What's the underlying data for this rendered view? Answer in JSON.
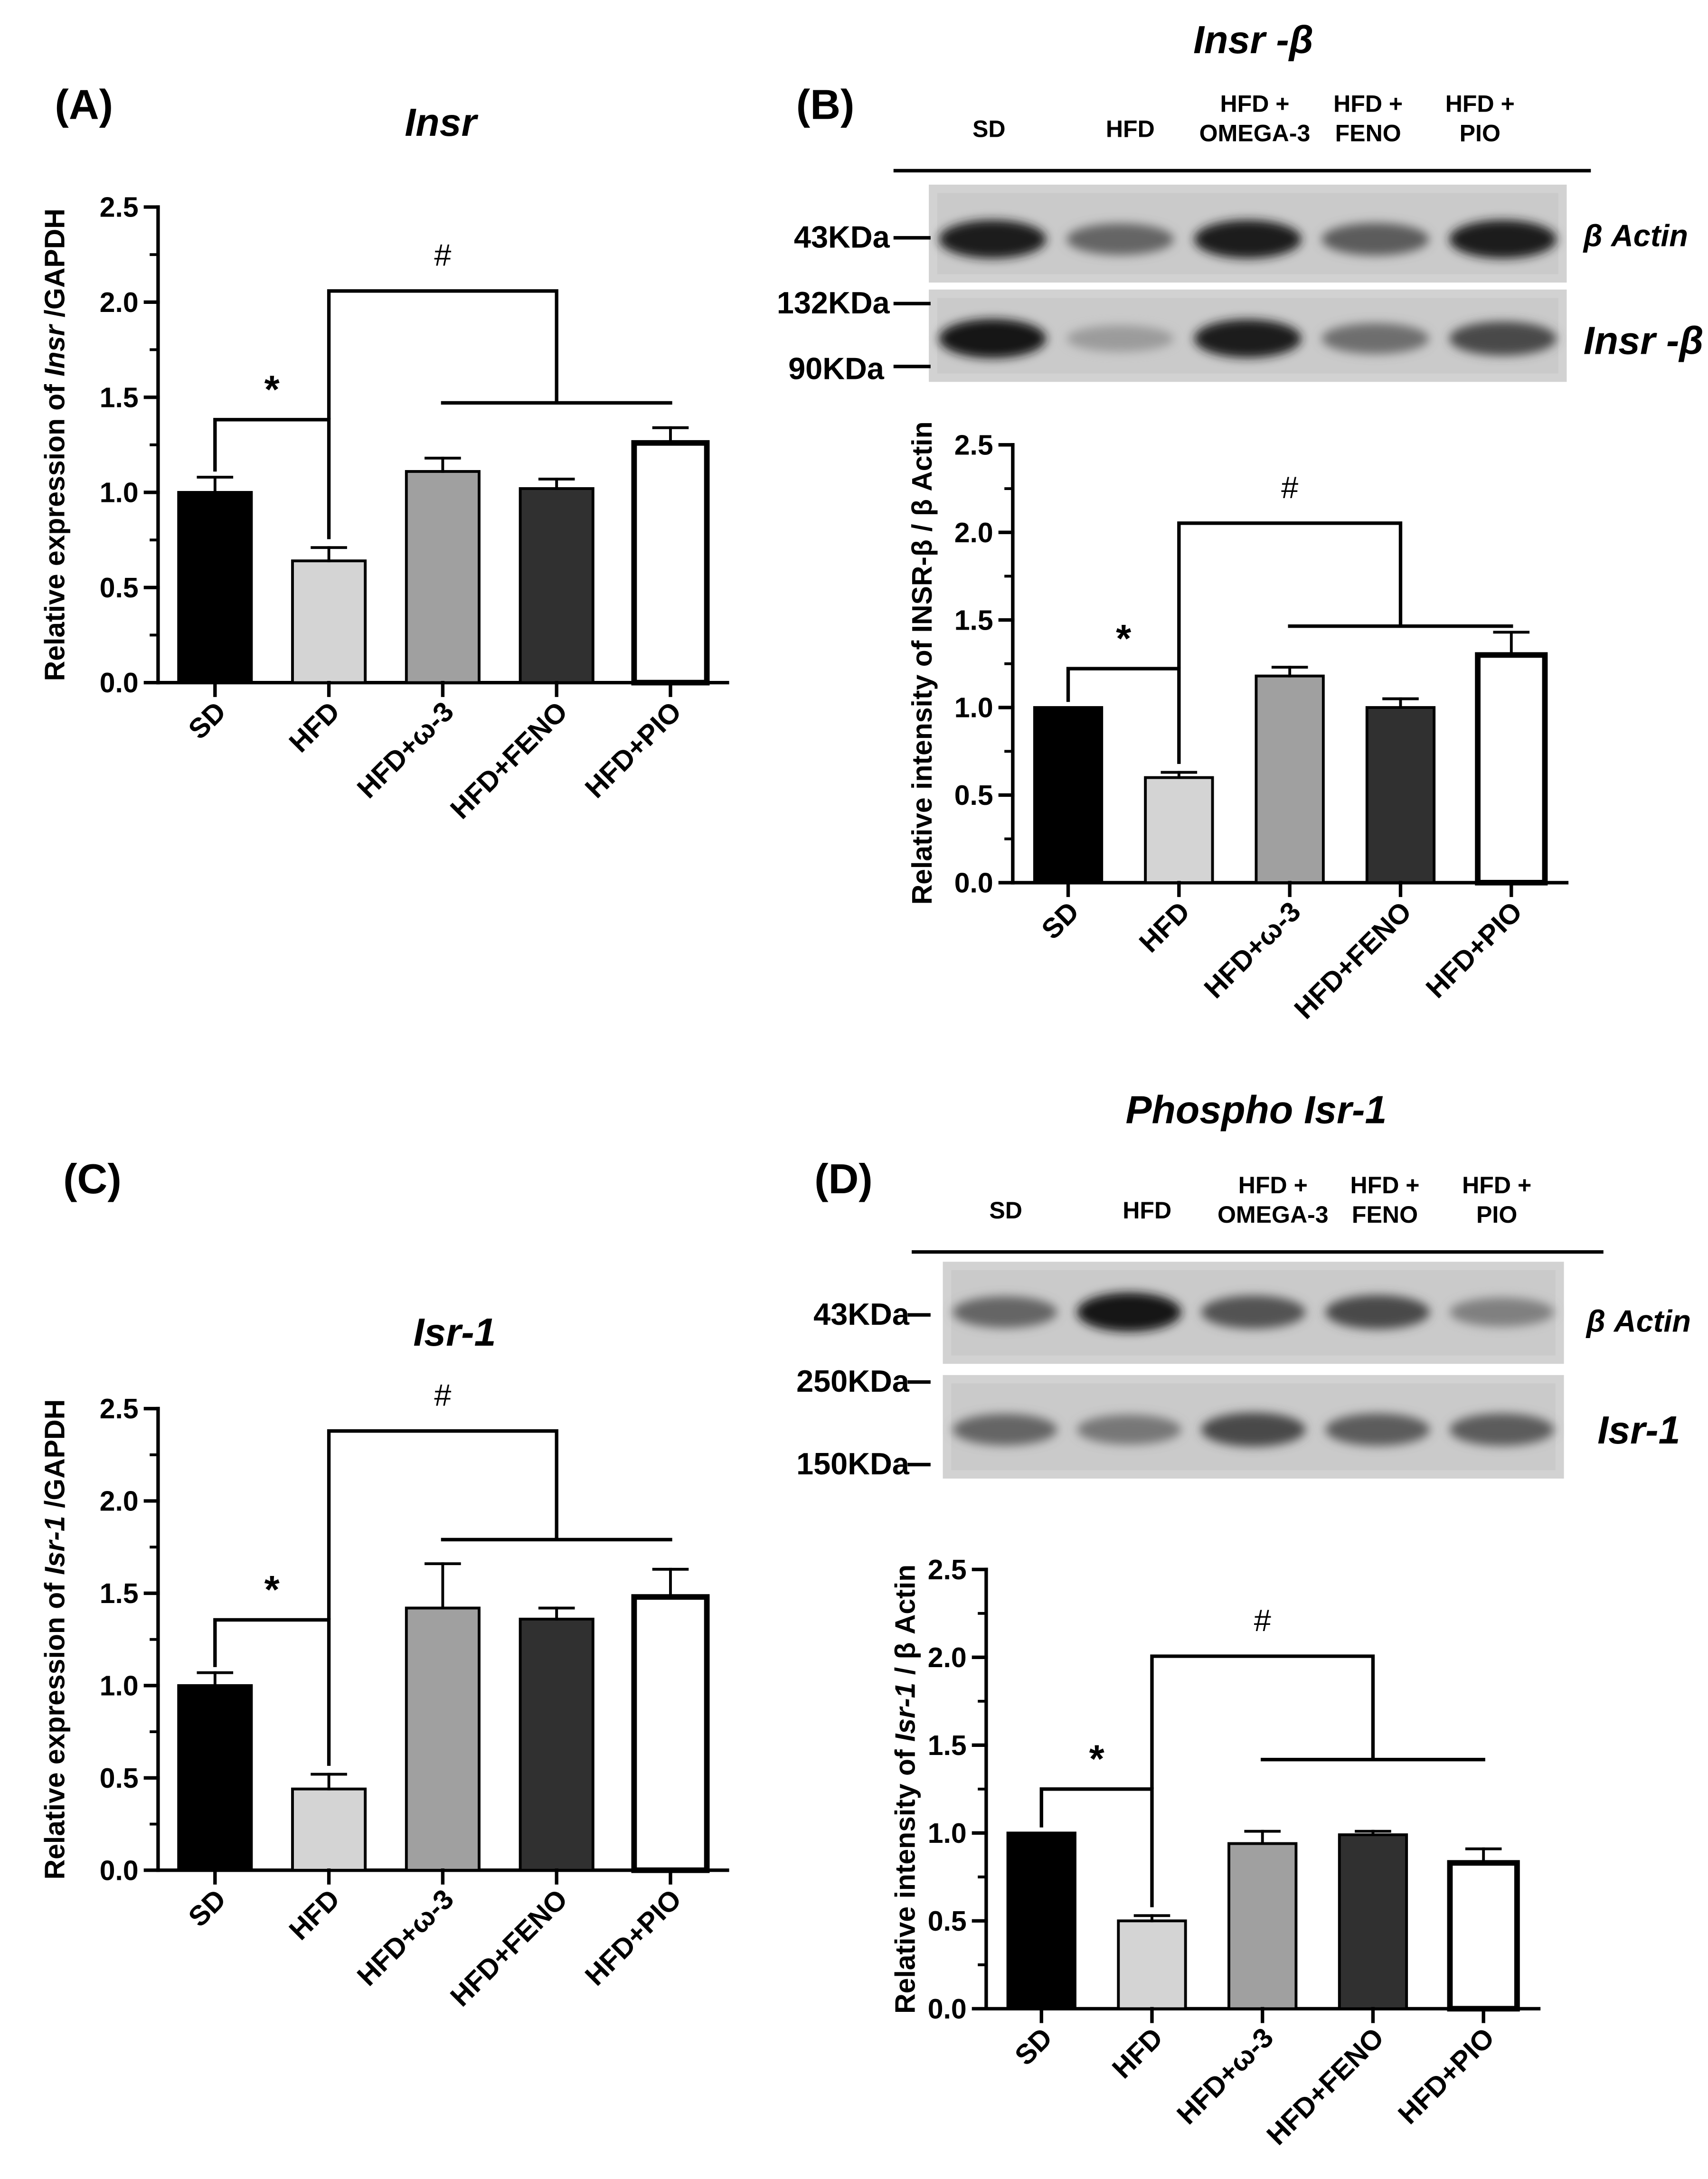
{
  "figure": {
    "top_titles": {
      "B": "Insr -β",
      "D": "Phospho Isr-1"
    }
  },
  "blots": {
    "B": {
      "lanes": [
        [
          "SD"
        ],
        [
          "HFD"
        ],
        [
          "HFD +",
          "OMEGA-3"
        ],
        [
          "HFD +",
          "FENO"
        ],
        [
          "HFD +",
          "PIO"
        ]
      ],
      "markers": [
        "43KDa",
        "132KDa",
        "90KDa"
      ],
      "strip_labels": [
        "β Actin",
        "Insr -β"
      ],
      "band_intensity": {
        "actin": [
          0.95,
          0.55,
          0.95,
          0.6,
          0.95
        ],
        "target": [
          1.0,
          0.25,
          0.95,
          0.5,
          0.7
        ]
      }
    },
    "D": {
      "lanes": [
        [
          "SD"
        ],
        [
          "HFD"
        ],
        [
          "HFD +",
          "OMEGA-3"
        ],
        [
          "HFD +",
          "FENO"
        ],
        [
          "HFD +",
          "PIO"
        ]
      ],
      "markers": [
        "43KDa",
        "250KDa",
        "150KDa"
      ],
      "strip_labels": [
        "β Actin",
        "Isr-1"
      ],
      "band_intensity": {
        "actin": [
          0.55,
          1.0,
          0.65,
          0.7,
          0.4
        ],
        "target": [
          0.55,
          0.45,
          0.7,
          0.6,
          0.6
        ]
      }
    }
  },
  "chart_data": [
    {
      "panel": "(A)",
      "type": "bar",
      "title": "Insr",
      "ylabel": "Relative expression of Insr /GAPDH",
      "categories": [
        "SD",
        "HFD",
        "HFD+ω-3",
        "HFD+FENO",
        "HFD+PIO"
      ],
      "values": [
        1.0,
        0.64,
        1.11,
        1.02,
        1.26
      ],
      "errors": [
        0.08,
        0.07,
        0.07,
        0.05,
        0.08
      ],
      "bar_colors": [
        "#000000",
        "#d4d4d4",
        "#a0a0a0",
        "#303030",
        "#ffffff"
      ],
      "ylim": [
        0,
        2.5
      ],
      "yticks": [
        "0.0",
        "0.5",
        "1.0",
        "1.5",
        "2.0",
        "2.5"
      ],
      "significance": [
        {
          "label": "*",
          "between": [
            "SD",
            "HFD"
          ]
        },
        {
          "label": "#",
          "between": [
            "HFD",
            "HFD+ω-3 … HFD+PIO"
          ]
        }
      ]
    },
    {
      "panel": "(B)",
      "type": "bar",
      "title": "",
      "ylabel": "Relative intensity of INSR-β / β Actin",
      "categories": [
        "SD",
        "HFD",
        "HFD+ω-3",
        "HFD+FENO",
        "HFD+PIO"
      ],
      "values": [
        1.0,
        0.6,
        1.18,
        1.0,
        1.3
      ],
      "errors": [
        0.0,
        0.03,
        0.05,
        0.05,
        0.13
      ],
      "bar_colors": [
        "#000000",
        "#d4d4d4",
        "#a0a0a0",
        "#303030",
        "#ffffff"
      ],
      "ylim": [
        0,
        2.5
      ],
      "yticks": [
        "0.0",
        "0.5",
        "1.0",
        "1.5",
        "2.0",
        "2.5"
      ],
      "significance": [
        {
          "label": "*",
          "between": [
            "SD",
            "HFD"
          ]
        },
        {
          "label": "#",
          "between": [
            "HFD",
            "HFD+ω-3 … HFD+PIO"
          ]
        }
      ]
    },
    {
      "panel": "(C)",
      "type": "bar",
      "title": "Isr-1",
      "ylabel": "Relative expression of Isr-1 /GAPDH",
      "categories": [
        "SD",
        "HFD",
        "HFD+ω-3",
        "HFD+FENO",
        "HFD+PIO"
      ],
      "values": [
        1.0,
        0.44,
        1.42,
        1.36,
        1.48
      ],
      "errors": [
        0.07,
        0.08,
        0.24,
        0.06,
        0.15
      ],
      "bar_colors": [
        "#000000",
        "#d4d4d4",
        "#a0a0a0",
        "#303030",
        "#ffffff"
      ],
      "ylim": [
        0,
        2.5
      ],
      "yticks": [
        "0.0",
        "0.5",
        "1.0",
        "1.5",
        "2.0",
        "2.5"
      ],
      "significance": [
        {
          "label": "*",
          "between": [
            "SD",
            "HFD"
          ]
        },
        {
          "label": "#",
          "between": [
            "HFD",
            "HFD+ω-3 … HFD+PIO"
          ]
        }
      ]
    },
    {
      "panel": "(D)",
      "type": "bar",
      "title": "",
      "ylabel": "Relative intensity of Isr-1 / β Actin",
      "categories": [
        "SD",
        "HFD",
        "HFD+ω-3",
        "HFD+FENO",
        "HFD+PIO"
      ],
      "values": [
        1.0,
        0.5,
        0.94,
        0.99,
        0.83
      ],
      "errors": [
        0.0,
        0.03,
        0.07,
        0.02,
        0.08
      ],
      "bar_colors": [
        "#000000",
        "#d4d4d4",
        "#a0a0a0",
        "#303030",
        "#ffffff"
      ],
      "ylim": [
        0,
        2.5
      ],
      "yticks": [
        "0.0",
        "0.5",
        "1.0",
        "1.5",
        "2.0",
        "2.5"
      ],
      "significance": [
        {
          "label": "*",
          "between": [
            "SD",
            "HFD"
          ]
        },
        {
          "label": "#",
          "between": [
            "HFD",
            "HFD+ω-3 … HFD+PIO"
          ]
        }
      ]
    }
  ]
}
